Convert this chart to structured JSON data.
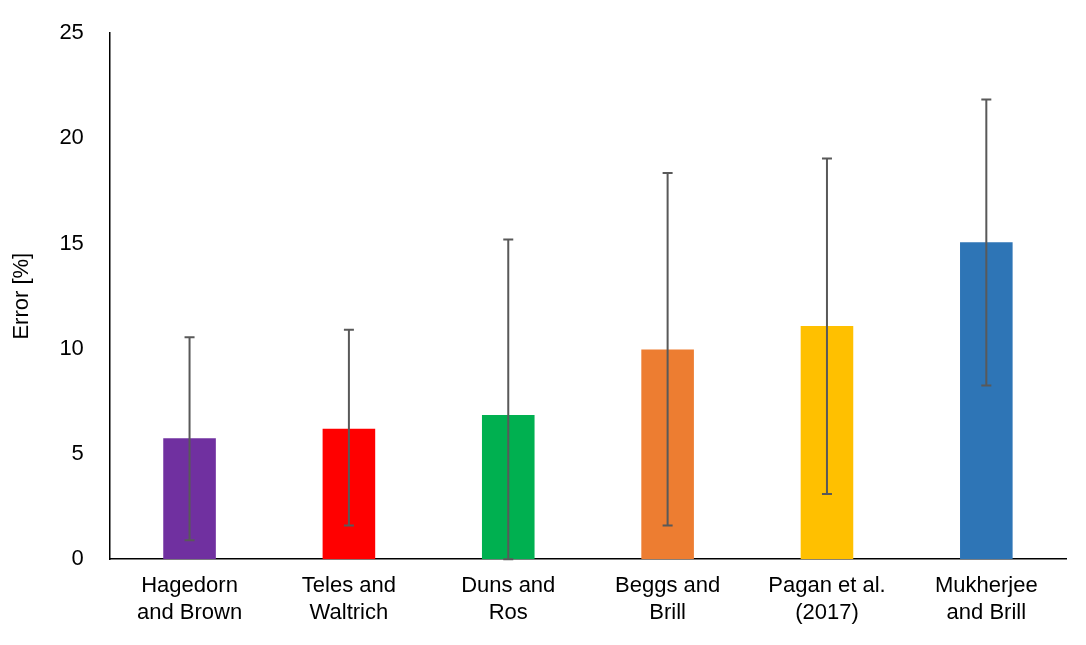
{
  "chart_data": {
    "type": "bar",
    "ylabel": "Error [%]",
    "categories": [
      "Hagedorn\nand Brown",
      "Teles and\nWaltrich",
      "Duns and\nRos",
      "Beggs and\nBrill",
      "Pagan et al.\n(2017)",
      "Mukherjee\nand Brill"
    ],
    "values": [
      5.75,
      6.2,
      6.85,
      9.97,
      11.08,
      15.07
    ],
    "colors": [
      "#7030a0",
      "#ff0000",
      "#00b050",
      "#ed7d31",
      "#ffc000",
      "#2e75b6"
    ],
    "errors": [
      [
        0.9,
        10.55
      ],
      [
        1.6,
        10.9
      ],
      [
        0,
        15.2
      ],
      [
        1.6,
        18.35
      ],
      [
        3.1,
        19.05
      ],
      [
        8.25,
        21.85
      ]
    ],
    "ylim": [
      0,
      25
    ],
    "yticks": [
      0,
      5,
      10,
      15,
      20,
      25
    ],
    "grid": false,
    "legend": false
  }
}
